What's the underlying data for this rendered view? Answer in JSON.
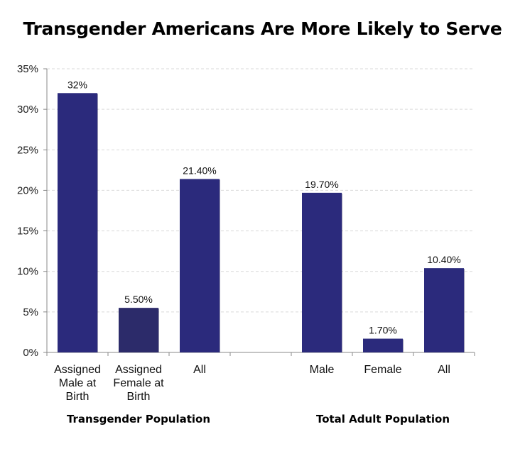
{
  "chart_data": {
    "type": "bar",
    "title": "Transgender Americans Are More Likely to Serve",
    "xlabel": "",
    "ylabel": "",
    "ylim": [
      0,
      35
    ],
    "yticks": [
      "0%",
      "5%",
      "10%",
      "15%",
      "20%",
      "25%",
      "30%",
      "35%"
    ],
    "ytick_values": [
      0,
      5,
      10,
      15,
      20,
      25,
      30,
      35
    ],
    "grid": true,
    "colors": {
      "bar": "#2b2a7c",
      "bar_alt": "#2c2b6a",
      "grid": "#d9d9d9",
      "axis": "#888888"
    },
    "categories": [
      {
        "label": [
          "Assigned",
          "Male at",
          "Birth"
        ],
        "value": 32,
        "data_label": "32%",
        "group": 0
      },
      {
        "label": [
          "Assigned",
          "Female at",
          "Birth"
        ],
        "value": 5.5,
        "data_label": "5.50%",
        "group": 0
      },
      {
        "label": [
          "All"
        ],
        "value": 21.4,
        "data_label": "21.40%",
        "group": 0
      },
      {
        "label": [
          "Male"
        ],
        "value": 19.7,
        "data_label": "19.70%",
        "group": 1
      },
      {
        "label": [
          "Female"
        ],
        "value": 1.7,
        "data_label": "1.70%",
        "group": 1
      },
      {
        "label": [
          "All"
        ],
        "value": 10.4,
        "data_label": "10.40%",
        "group": 1
      }
    ],
    "groups": [
      "Transgender Population",
      "Total Adult Population"
    ]
  }
}
